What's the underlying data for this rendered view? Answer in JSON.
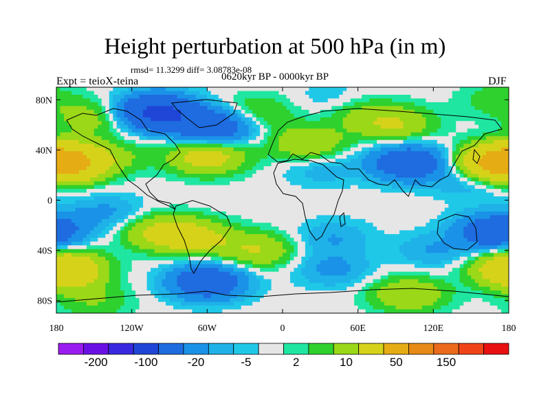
{
  "header": {
    "title": "Height perturbation at 500 hPa (in m)",
    "stats": "rmsd= 11.3299 diff= 3.08783e-08",
    "experiment": "Expt = teioX-teina",
    "period": "0620kyr BP - 0000kyr BP",
    "season": "DJF"
  },
  "chart_data": {
    "type": "heatmap",
    "title": "Height perturbation at 500 hPa (in m)",
    "xlim": [
      -180,
      180
    ],
    "ylim": [
      -90,
      90
    ],
    "x_ticks": [
      -180,
      -120,
      -60,
      0,
      60,
      120,
      180
    ],
    "x_tick_labels": [
      "180",
      "120W",
      "60W",
      "0",
      "60E",
      "120E",
      "180"
    ],
    "y_ticks": [
      80,
      40,
      0,
      -40,
      -80
    ],
    "y_tick_labels": [
      "80N",
      "40N",
      "0",
      "40S",
      "80S"
    ],
    "colorbar": {
      "labels": [
        "-200",
        "-100",
        "-20",
        "-5",
        "2",
        "10",
        "50",
        "150"
      ],
      "colors": [
        "#9b1cf0",
        "#6a12e6",
        "#3a28e0",
        "#1f46d6",
        "#1e6ce0",
        "#1a92e8",
        "#1fb2e8",
        "#20c8e8",
        "#e6e6e6",
        "#1fe6a0",
        "#2ed12e",
        "#9ad818",
        "#d6d21a",
        "#e6ac14",
        "#e88a16",
        "#ec6a1c",
        "#f04418",
        "#e81010"
      ]
    },
    "anomalies": [
      {
        "lon": -100,
        "lat": 70,
        "value": -60
      },
      {
        "lon": -55,
        "lat": 58,
        "value": -40
      },
      {
        "lon": -150,
        "lat": 65,
        "value": 15
      },
      {
        "lon": -20,
        "lat": 70,
        "value": 12
      },
      {
        "lon": 40,
        "lat": 80,
        "value": -6
      },
      {
        "lon": 170,
        "lat": 80,
        "value": 8
      },
      {
        "lon": -60,
        "lat": 35,
        "value": 30
      },
      {
        "lon": 20,
        "lat": 45,
        "value": 20
      },
      {
        "lon": -170,
        "lat": 30,
        "value": 50
      },
      {
        "lon": 170,
        "lat": 30,
        "value": 50
      },
      {
        "lon": -130,
        "lat": 35,
        "value": 8
      },
      {
        "lon": 90,
        "lat": 60,
        "value": 20
      },
      {
        "lon": 100,
        "lat": 30,
        "value": -40
      },
      {
        "lon": 30,
        "lat": 25,
        "value": -8
      },
      {
        "lon": 150,
        "lat": 15,
        "value": -10
      },
      {
        "lon": -70,
        "lat": -30,
        "value": 25
      },
      {
        "lon": -140,
        "lat": -10,
        "value": -12
      },
      {
        "lon": -100,
        "lat": -25,
        "value": 20
      },
      {
        "lon": -20,
        "lat": -40,
        "value": 20
      },
      {
        "lon": 40,
        "lat": -30,
        "value": -10
      },
      {
        "lon": -175,
        "lat": -55,
        "value": 50
      },
      {
        "lon": 170,
        "lat": -25,
        "value": -40
      },
      {
        "lon": 120,
        "lat": -40,
        "value": -10
      },
      {
        "lon": -60,
        "lat": -65,
        "value": -40
      },
      {
        "lon": 40,
        "lat": -55,
        "value": -12
      },
      {
        "lon": 100,
        "lat": -75,
        "value": 20
      },
      {
        "lon": -150,
        "lat": -80,
        "value": 10
      },
      {
        "lon": 60,
        "lat": 70,
        "value": 10
      }
    ],
    "grid": false
  }
}
